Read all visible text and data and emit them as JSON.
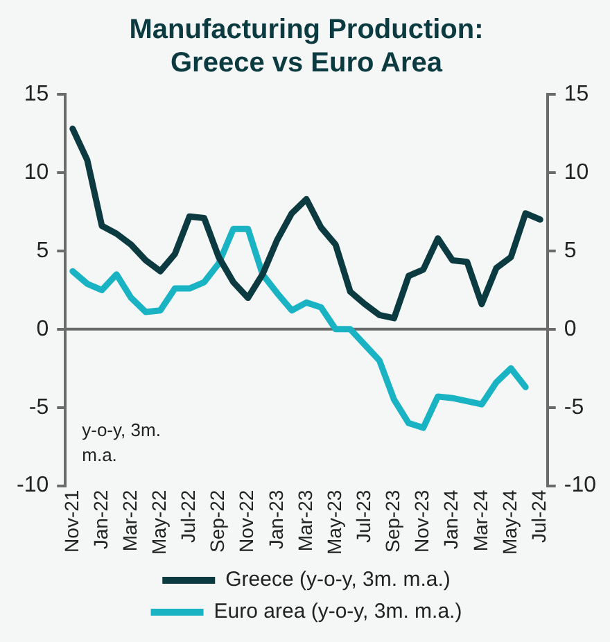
{
  "chart_data": {
    "type": "line",
    "title": "Manufacturing Production:\nGreece vs Euro Area",
    "categories": [
      "Nov-21",
      null,
      "Jan-22",
      null,
      "Mar-22",
      null,
      "May-22",
      null,
      "Jul-22",
      null,
      "Sep-22",
      null,
      "Nov-22",
      null,
      "Jan-23",
      null,
      "Mar-23",
      null,
      "May-23",
      null,
      "Jul-23",
      null,
      "Sep-23",
      null,
      "Nov-23",
      null,
      "Jan-24",
      null,
      "Mar-24",
      null,
      "May-24",
      null,
      "Jul-24"
    ],
    "series": [
      {
        "name": "Greece (y-o-y, 3m. m.a.)",
        "color": "#0b3a40",
        "values": [
          12.8,
          10.8,
          6.6,
          6.1,
          5.4,
          4.4,
          3.7,
          4.8,
          7.2,
          7.1,
          4.6,
          3.0,
          2.0,
          3.5,
          5.7,
          7.4,
          8.3,
          6.5,
          5.4,
          2.4,
          1.6,
          0.9,
          0.7,
          3.4,
          3.8,
          5.8,
          4.4,
          4.3,
          1.6,
          3.9,
          4.6,
          7.4,
          7.0
        ]
      },
      {
        "name": "Euro area (y-o-y, 3m. m.a.)",
        "color": "#1ab3c4",
        "values": [
          3.7,
          2.9,
          2.5,
          3.5,
          2.0,
          1.1,
          1.2,
          2.6,
          2.6,
          3.0,
          4.2,
          6.4,
          6.4,
          3.5,
          2.3,
          1.2,
          1.7,
          1.4,
          0.0,
          0.0,
          -1.0,
          -2.0,
          -4.5,
          -6.0,
          -6.3,
          -4.3,
          -4.4,
          -4.6,
          -4.8,
          -3.4,
          -2.5,
          -3.7,
          null
        ]
      }
    ],
    "ylim": [
      -10,
      15
    ],
    "yticks": [
      -10,
      -5,
      0,
      5,
      10,
      15
    ],
    "y2lim": [
      -10,
      15
    ],
    "y2ticks": [
      -10,
      -5,
      0,
      5,
      10,
      15
    ],
    "ref_lines": [
      {
        "axis": "y",
        "value": 0,
        "color": "#6b6b6b"
      }
    ],
    "annotations": [
      "y-o-y, 3m. m.a."
    ],
    "grid": false,
    "legend": "bottom",
    "marker": "none",
    "line_style": "solid"
  }
}
